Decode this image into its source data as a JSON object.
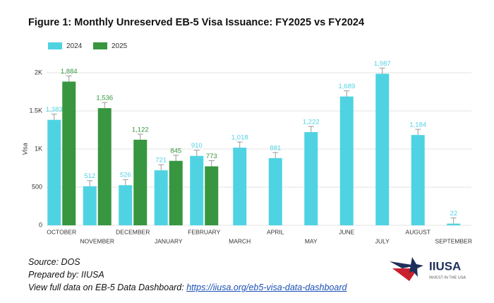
{
  "chart_data": {
    "type": "bar",
    "title": "Figure 1: Monthly Unreserved EB-5 Visa Issuance: FY2025 vs FY2024",
    "y_label": "Visa",
    "categories": [
      "OCTOBER",
      "NOVEMBER",
      "DECEMBER",
      "JANUARY",
      "FEBRUARY",
      "MARCH",
      "APRIL",
      "MAY",
      "JUNE",
      "JULY",
      "AUGUST",
      "SEPTEMBER"
    ],
    "series": [
      {
        "name": "2024",
        "color": "#4fd3e3",
        "values": [
          1383,
          512,
          526,
          721,
          910,
          1018,
          881,
          1222,
          1689,
          1987,
          1184,
          22
        ],
        "value_labels": [
          "1,383",
          "512",
          "526",
          "721",
          "910",
          "1,018",
          "881",
          "1,222",
          "1,689",
          "1,987",
          "1,184",
          "22"
        ]
      },
      {
        "name": "2025",
        "color": "#37963f",
        "values": [
          1884,
          1536,
          1122,
          845,
          773,
          null,
          null,
          null,
          null,
          null,
          null,
          null
        ],
        "value_labels": [
          "1,884",
          "1,536",
          "1,122",
          "845",
          "773",
          null,
          null,
          null,
          null,
          null,
          null,
          null
        ]
      }
    ],
    "ylim": [
      0,
      2000
    ],
    "yticks": [
      0,
      500,
      {
        "value": 1000,
        "label": "1K"
      },
      {
        "value": 1500,
        "label": "1.5K"
      },
      {
        "value": 2000,
        "label": "2K"
      }
    ],
    "grid": true,
    "legend": "top-left"
  },
  "footer": {
    "source": "Source: DOS",
    "prepared": "Prepared by: IIUSA",
    "dashboard_text": "View full data on EB-5 Data Dashboard:",
    "dashboard_link": "https://iiusa.org/eb5-visa-data-dashboard"
  },
  "logo": {
    "name": "IIUSA",
    "tagline": "INVEST IN THE USA"
  }
}
